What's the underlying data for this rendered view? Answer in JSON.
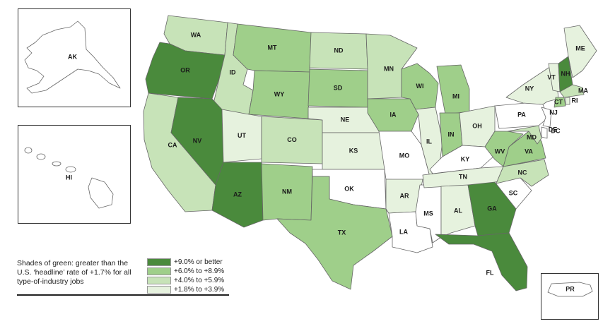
{
  "colors": {
    "c1": "#4a8a3c",
    "c2": "#9fcf8a",
    "c3": "#c7e3b8",
    "c4": "#e6f2de",
    "c0": "#ffffff"
  },
  "legend": {
    "description": "Shades of green: greater than the U.S. ‘headline’ rate of +1.7% for all type-of-industry jobs",
    "items": [
      {
        "label": "+9.0% or better",
        "color": "#4a8a3c"
      },
      {
        "label": "+6.0% to +8.9%",
        "color": "#9fcf8a"
      },
      {
        "label": "+4.0% to +5.9%",
        "color": "#c7e3b8"
      },
      {
        "label": "+1.8% to +3.9%",
        "color": "#e6f2de"
      }
    ]
  },
  "states": [
    {
      "abbr": "WA",
      "cls": "c3"
    },
    {
      "abbr": "OR",
      "cls": "c1"
    },
    {
      "abbr": "CA",
      "cls": "c3"
    },
    {
      "abbr": "ID",
      "cls": "c3"
    },
    {
      "abbr": "NV",
      "cls": "c1"
    },
    {
      "abbr": "MT",
      "cls": "c2"
    },
    {
      "abbr": "WY",
      "cls": "c2"
    },
    {
      "abbr": "UT",
      "cls": "c4"
    },
    {
      "abbr": "AZ",
      "cls": "c1"
    },
    {
      "abbr": "CO",
      "cls": "c3"
    },
    {
      "abbr": "NM",
      "cls": "c2"
    },
    {
      "abbr": "ND",
      "cls": "c3"
    },
    {
      "abbr": "SD",
      "cls": "c2"
    },
    {
      "abbr": "NE",
      "cls": "c4"
    },
    {
      "abbr": "KS",
      "cls": "c4"
    },
    {
      "abbr": "OK",
      "cls": "c0"
    },
    {
      "abbr": "TX",
      "cls": "c2"
    },
    {
      "abbr": "MN",
      "cls": "c3"
    },
    {
      "abbr": "IA",
      "cls": "c2"
    },
    {
      "abbr": "MO",
      "cls": "c0"
    },
    {
      "abbr": "AR",
      "cls": "c4"
    },
    {
      "abbr": "LA",
      "cls": "c0"
    },
    {
      "abbr": "WI",
      "cls": "c2"
    },
    {
      "abbr": "IL",
      "cls": "c4"
    },
    {
      "abbr": "MS",
      "cls": "c0"
    },
    {
      "abbr": "MI",
      "cls": "c2"
    },
    {
      "abbr": "IN",
      "cls": "c2"
    },
    {
      "abbr": "KY",
      "cls": "c0"
    },
    {
      "abbr": "TN",
      "cls": "c4"
    },
    {
      "abbr": "AL",
      "cls": "c4"
    },
    {
      "abbr": "OH",
      "cls": "c4"
    },
    {
      "abbr": "WV",
      "cls": "c2"
    },
    {
      "abbr": "VA",
      "cls": "c2"
    },
    {
      "abbr": "NC",
      "cls": "c3"
    },
    {
      "abbr": "SC",
      "cls": "c0"
    },
    {
      "abbr": "GA",
      "cls": "c1"
    },
    {
      "abbr": "FL",
      "cls": "c1"
    },
    {
      "abbr": "PA",
      "cls": "c0"
    },
    {
      "abbr": "NY",
      "cls": "c4"
    },
    {
      "abbr": "VT",
      "cls": "c4"
    },
    {
      "abbr": "NH",
      "cls": "c1"
    },
    {
      "abbr": "ME",
      "cls": "c4"
    },
    {
      "abbr": "MA",
      "cls": "c3"
    },
    {
      "abbr": "CT",
      "cls": "c2"
    },
    {
      "abbr": "RI",
      "cls": "c4"
    },
    {
      "abbr": "NJ",
      "cls": "c0"
    },
    {
      "abbr": "DE",
      "cls": "c0"
    },
    {
      "abbr": "MD",
      "cls": "c3"
    },
    {
      "abbr": "DC",
      "cls": "c0"
    },
    {
      "abbr": "AK",
      "cls": "c0"
    },
    {
      "abbr": "HI",
      "cls": "c0"
    },
    {
      "abbr": "PR",
      "cls": "c0"
    }
  ]
}
